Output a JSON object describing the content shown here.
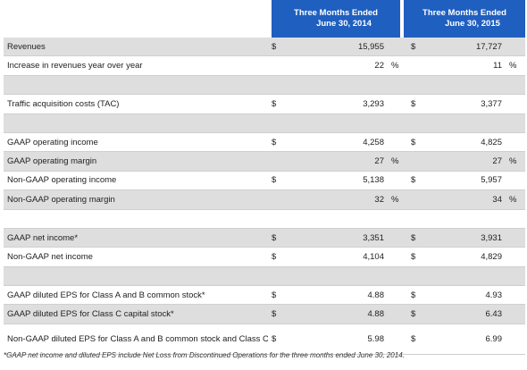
{
  "header": {
    "col1_line1": "Three Months Ended",
    "col1_line2": "June 30, 2014",
    "col2_line1": "Three Months Ended",
    "col2_line2": "June 30, 2015"
  },
  "rows": [
    {
      "label": "Revenues",
      "cur1": "$",
      "v1": "15,955",
      "p1": "",
      "cur2": "$",
      "v2": "17,727",
      "p2": "",
      "shade": true
    },
    {
      "label": "Increase in revenues year over year",
      "cur1": "",
      "v1": "22",
      "p1": "%",
      "cur2": "",
      "v2": "11",
      "p2": "%",
      "shade": false
    },
    {
      "label": "",
      "cur1": "",
      "v1": "",
      "p1": "",
      "cur2": "",
      "v2": "",
      "p2": "",
      "shade": true
    },
    {
      "label": "Traffic acquisition costs (TAC)",
      "cur1": "$",
      "v1": "3,293",
      "p1": "",
      "cur2": "$",
      "v2": "3,377",
      "p2": "",
      "shade": false
    },
    {
      "label": "",
      "cur1": "",
      "v1": "",
      "p1": "",
      "cur2": "",
      "v2": "",
      "p2": "",
      "shade": true
    },
    {
      "label": "GAAP operating income",
      "cur1": "$",
      "v1": "4,258",
      "p1": "",
      "cur2": "$",
      "v2": "4,825",
      "p2": "",
      "shade": false
    },
    {
      "label": "GAAP operating margin",
      "cur1": "",
      "v1": "27",
      "p1": "%",
      "cur2": "",
      "v2": "27",
      "p2": "%",
      "shade": true
    },
    {
      "label": "Non-GAAP operating income",
      "cur1": "$",
      "v1": "5,138",
      "p1": "",
      "cur2": "$",
      "v2": "5,957",
      "p2": "",
      "shade": false
    },
    {
      "label": "Non-GAAP operating margin",
      "cur1": "",
      "v1": "32",
      "p1": "%",
      "cur2": "",
      "v2": "34",
      "p2": "%",
      "shade": true
    },
    {
      "label": "",
      "cur1": "",
      "v1": "",
      "p1": "",
      "cur2": "",
      "v2": "",
      "p2": "",
      "shade": false
    },
    {
      "label": "GAAP net income*",
      "cur1": "$",
      "v1": "3,351",
      "p1": "",
      "cur2": "$",
      "v2": "3,931",
      "p2": "",
      "shade": true
    },
    {
      "label": "Non-GAAP net income",
      "cur1": "$",
      "v1": "4,104",
      "p1": "",
      "cur2": "$",
      "v2": "4,829",
      "p2": "",
      "shade": false
    },
    {
      "label": "",
      "cur1": "",
      "v1": "",
      "p1": "",
      "cur2": "",
      "v2": "",
      "p2": "",
      "shade": true
    },
    {
      "label": "GAAP diluted EPS for Class A and B common stock*",
      "cur1": "$",
      "v1": "4.88",
      "p1": "",
      "cur2": "$",
      "v2": "4.93",
      "p2": "",
      "shade": false
    },
    {
      "label": "GAAP diluted EPS for Class C capital stock*",
      "cur1": "$",
      "v1": "4.88",
      "p1": "",
      "cur2": "$",
      "v2": "6.43",
      "p2": "",
      "shade": true
    },
    {
      "label": "Non-GAAP diluted EPS for Class A and B common stock and Class C capital stock",
      "cur1": "$",
      "v1": "5.98",
      "p1": "",
      "cur2": "$",
      "v2": "6.99",
      "p2": "",
      "shade": false,
      "tall": true
    }
  ],
  "footnote": "*GAAP net income and diluted EPS include Net Loss from Discontinued Operations for the three months ended June 30, 2014."
}
